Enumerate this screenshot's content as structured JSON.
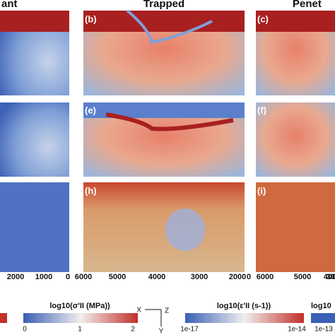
{
  "headers": [
    "ant",
    "Trapped",
    "Penet"
  ],
  "panels": [
    "(b)",
    "(c)",
    "(e)",
    "(f)",
    "(h)",
    "(i)"
  ],
  "x_ticks": [
    "2000",
    "1000",
    "0",
    "6000",
    "5000",
    "4000",
    "3000",
    "2000",
    "0",
    "6000",
    "5000",
    "4000",
    "30"
  ],
  "axes_glyph": [
    "X",
    "Z",
    "Y"
  ],
  "colorbars": [
    {
      "title": "log10(σ'II (MPa))",
      "ticks": [
        "0",
        "1",
        "2"
      ]
    },
    {
      "title": "log10(ε'II (s-1))",
      "ticks": [
        "1e-17",
        "1e-14"
      ]
    },
    {
      "title": "log10",
      "ticks": [
        "1e-13"
      ]
    }
  ]
}
